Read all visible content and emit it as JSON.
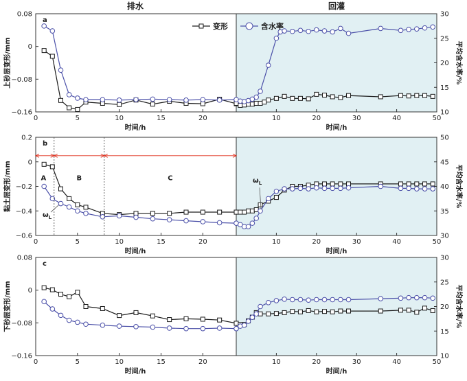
{
  "headers": {
    "left": "排水",
    "right": "回灌"
  },
  "legend": {
    "deform": "变形",
    "moisture": "含水率"
  },
  "colors": {
    "deform": "#1a1a1a",
    "moisture": "#4a4fa8",
    "shade": "#e1f0f3",
    "arrow": "#e0301e"
  },
  "chart_data": [
    {
      "type": "line",
      "panel_label": "a",
      "ylabel": "上砂层变形/mm",
      "y2label": "平均含水率/%",
      "xlabel_left": "时间/h",
      "xlabel_right": "时间/h",
      "ylim": [
        -0.16,
        0.08
      ],
      "yticks": [
        -0.16,
        -0.08,
        0,
        0.08
      ],
      "ytick_labels": [
        "−0.16",
        "−0.08",
        "0",
        "0.08"
      ],
      "y2lim": [
        10,
        30
      ],
      "y2ticks": [
        10,
        15,
        20,
        25,
        30
      ],
      "xticks_left": [
        0,
        5,
        10,
        15,
        20
      ],
      "xticks_right": [
        0,
        10,
        20,
        30,
        40,
        50
      ],
      "drain": {
        "deform": [
          [
            1,
            -0.01
          ],
          [
            2,
            -0.024
          ],
          [
            3,
            -0.132
          ],
          [
            4,
            -0.15
          ],
          [
            5,
            -0.154
          ],
          [
            6,
            -0.136
          ],
          [
            8,
            -0.139
          ],
          [
            10,
            -0.142
          ],
          [
            12,
            -0.131
          ],
          [
            14,
            -0.141
          ],
          [
            16,
            -0.134
          ],
          [
            18,
            -0.139
          ],
          [
            20,
            -0.14
          ],
          [
            22,
            -0.129
          ],
          [
            24,
            -0.14
          ]
        ],
        "moisture": [
          [
            1,
            27.5
          ],
          [
            2,
            26.5
          ],
          [
            3,
            18.5
          ],
          [
            4,
            13.5
          ],
          [
            5,
            12.8
          ],
          [
            6,
            12.5
          ],
          [
            8,
            12.5
          ],
          [
            10,
            12.4
          ],
          [
            12,
            12.5
          ],
          [
            14,
            12.6
          ],
          [
            16,
            12.5
          ],
          [
            18,
            12.4
          ],
          [
            20,
            12.5
          ],
          [
            22,
            12.4
          ],
          [
            24,
            12.5
          ]
        ]
      },
      "recharge": {
        "deform": [
          [
            0,
            -0.139
          ],
          [
            1,
            -0.144
          ],
          [
            2,
            -0.143
          ],
          [
            3,
            -0.141
          ],
          [
            4,
            -0.141
          ],
          [
            5,
            -0.139
          ],
          [
            6,
            -0.139
          ],
          [
            7,
            -0.136
          ],
          [
            8,
            -0.131
          ],
          [
            10,
            -0.127
          ],
          [
            12,
            -0.122
          ],
          [
            14,
            -0.127
          ],
          [
            16,
            -0.127
          ],
          [
            18,
            -0.128
          ],
          [
            20,
            -0.117
          ],
          [
            22,
            -0.119
          ],
          [
            24,
            -0.123
          ],
          [
            26,
            -0.125
          ],
          [
            28,
            -0.12
          ],
          [
            36,
            -0.123
          ],
          [
            41,
            -0.12
          ],
          [
            43,
            -0.121
          ],
          [
            45,
            -0.12
          ],
          [
            47,
            -0.12
          ],
          [
            49,
            -0.122
          ]
        ],
        "moisture": [
          [
            0,
            12.5
          ],
          [
            1,
            12.2
          ],
          [
            2,
            12.1
          ],
          [
            3,
            12.3
          ],
          [
            4,
            12.6
          ],
          [
            5,
            13.0
          ],
          [
            6,
            14.2
          ],
          [
            8,
            19.5
          ],
          [
            10,
            25.0
          ],
          [
            11,
            26.3
          ],
          [
            12,
            26.5
          ],
          [
            14,
            26.4
          ],
          [
            16,
            26.6
          ],
          [
            18,
            26.4
          ],
          [
            20,
            26.7
          ],
          [
            22,
            26.5
          ],
          [
            24,
            26.3
          ],
          [
            26,
            27.0
          ],
          [
            28,
            26.0
          ],
          [
            36,
            27.0
          ],
          [
            41,
            26.6
          ],
          [
            43,
            26.8
          ],
          [
            45,
            26.9
          ],
          [
            47,
            27.1
          ],
          [
            49,
            27.3
          ]
        ]
      }
    },
    {
      "type": "line",
      "panel_label": "b",
      "ylabel": "黏土层变形/mm",
      "y2label": "平均含水率/%",
      "xlabel_left": "时间/h",
      "xlabel_right": "时间/h",
      "ylim": [
        -0.6,
        0.2
      ],
      "yticks": [
        -0.6,
        -0.4,
        -0.2,
        0,
        0.2
      ],
      "ytick_labels": [
        "−0.6",
        "−0.4",
        "−0.2",
        "0",
        "0.2"
      ],
      "y2lim": [
        30,
        50
      ],
      "y2ticks": [
        30,
        35,
        40,
        45,
        50
      ],
      "xticks_left": [
        0,
        5,
        10,
        15,
        20
      ],
      "xticks_right": [
        0,
        10,
        20,
        30,
        40,
        50
      ],
      "stage_labels": [
        "A",
        "B",
        "C"
      ],
      "stage_bounds": [
        2.2,
        8.2
      ],
      "omega_label": "ω",
      "omega_sub": "L",
      "drain": {
        "deform": [
          [
            1,
            -0.02
          ],
          [
            2,
            -0.04
          ],
          [
            3,
            -0.22
          ],
          [
            4,
            -0.3
          ],
          [
            5,
            -0.35
          ],
          [
            6,
            -0.37
          ],
          [
            8,
            -0.42
          ],
          [
            10,
            -0.43
          ],
          [
            12,
            -0.42
          ],
          [
            14,
            -0.42
          ],
          [
            16,
            -0.42
          ],
          [
            18,
            -0.41
          ],
          [
            20,
            -0.41
          ],
          [
            22,
            -0.41
          ],
          [
            24,
            -0.41
          ]
        ],
        "moisture": [
          [
            1,
            40.0
          ],
          [
            2,
            37.5
          ],
          [
            3,
            36.5
          ],
          [
            4,
            35.8
          ],
          [
            5,
            35.0
          ],
          [
            6,
            34.5
          ],
          [
            8,
            33.8
          ],
          [
            10,
            34.0
          ],
          [
            12,
            33.7
          ],
          [
            14,
            33.4
          ],
          [
            16,
            33.2
          ],
          [
            18,
            33.0
          ],
          [
            20,
            32.8
          ],
          [
            22,
            32.6
          ],
          [
            24,
            32.5
          ]
        ]
      },
      "recharge": {
        "deform": [
          [
            0,
            -0.41
          ],
          [
            1,
            -0.41
          ],
          [
            2,
            -0.41
          ],
          [
            3,
            -0.4
          ],
          [
            4,
            -0.4
          ],
          [
            5,
            -0.39
          ],
          [
            6,
            -0.35
          ],
          [
            8,
            -0.32
          ],
          [
            10,
            -0.29
          ],
          [
            12,
            -0.23
          ],
          [
            14,
            -0.2
          ],
          [
            16,
            -0.2
          ],
          [
            18,
            -0.19
          ],
          [
            20,
            -0.18
          ],
          [
            22,
            -0.18
          ],
          [
            24,
            -0.18
          ],
          [
            26,
            -0.18
          ],
          [
            28,
            -0.18
          ],
          [
            36,
            -0.18
          ],
          [
            41,
            -0.18
          ],
          [
            43,
            -0.18
          ],
          [
            45,
            -0.18
          ],
          [
            47,
            -0.18
          ],
          [
            49,
            -0.18
          ]
        ],
        "moisture": [
          [
            0,
            32.5
          ],
          [
            1,
            32.2
          ],
          [
            2,
            31.8
          ],
          [
            3,
            31.8
          ],
          [
            4,
            32.5
          ],
          [
            5,
            33.5
          ],
          [
            6,
            35.0
          ],
          [
            8,
            37.5
          ],
          [
            10,
            39.0
          ],
          [
            12,
            39.5
          ],
          [
            14,
            39.5
          ],
          [
            16,
            39.6
          ],
          [
            18,
            39.5
          ],
          [
            20,
            39.7
          ],
          [
            22,
            39.6
          ],
          [
            24,
            39.6
          ],
          [
            26,
            39.6
          ],
          [
            28,
            39.7
          ],
          [
            36,
            40.0
          ],
          [
            41,
            39.6
          ],
          [
            43,
            39.6
          ],
          [
            45,
            39.5
          ],
          [
            47,
            39.5
          ],
          [
            49,
            39.5
          ]
        ]
      }
    },
    {
      "type": "line",
      "panel_label": "c",
      "ylabel": "下砂层变形/mm",
      "y2label": "平均含水率/%",
      "xlabel_left": "时间/h",
      "xlabel_right": "时间/h",
      "ylim": [
        -0.16,
        0.08
      ],
      "yticks": [
        -0.16,
        -0.08,
        0,
        0.08
      ],
      "ytick_labels": [
        "−0.16",
        "−0.08",
        "0",
        "0.08"
      ],
      "y2lim": [
        10,
        30
      ],
      "y2ticks": [
        10,
        15,
        20,
        25,
        30
      ],
      "xticks_left": [
        0,
        5,
        10,
        15,
        20
      ],
      "xticks_right": [
        0,
        10,
        20,
        30,
        40,
        50
      ],
      "drain": {
        "deform": [
          [
            1,
            0.006
          ],
          [
            2,
            0.001
          ],
          [
            3,
            -0.01
          ],
          [
            4,
            -0.016
          ],
          [
            5,
            -0.005
          ],
          [
            6,
            -0.04
          ],
          [
            8,
            -0.045
          ],
          [
            10,
            -0.062
          ],
          [
            12,
            -0.055
          ],
          [
            14,
            -0.063
          ],
          [
            16,
            -0.072
          ],
          [
            18,
            -0.07
          ],
          [
            20,
            -0.071
          ],
          [
            22,
            -0.073
          ],
          [
            24,
            -0.081
          ]
        ],
        "moisture": [
          [
            1,
            21.0
          ],
          [
            2,
            19.5
          ],
          [
            3,
            18.2
          ],
          [
            4,
            17.2
          ],
          [
            5,
            16.8
          ],
          [
            6,
            16.4
          ],
          [
            8,
            16.2
          ],
          [
            10,
            16.0
          ],
          [
            12,
            15.9
          ],
          [
            14,
            15.8
          ],
          [
            16,
            15.6
          ],
          [
            18,
            15.5
          ],
          [
            20,
            15.5
          ],
          [
            22,
            15.6
          ],
          [
            24,
            15.5
          ]
        ]
      },
      "recharge": {
        "deform": [
          [
            0,
            -0.081
          ],
          [
            1,
            -0.084
          ],
          [
            2,
            -0.084
          ],
          [
            3,
            -0.075
          ],
          [
            4,
            -0.066
          ],
          [
            5,
            -0.055
          ],
          [
            6,
            -0.058
          ],
          [
            8,
            -0.058
          ],
          [
            10,
            -0.057
          ],
          [
            12,
            -0.055
          ],
          [
            14,
            -0.052
          ],
          [
            16,
            -0.053
          ],
          [
            18,
            -0.05
          ],
          [
            20,
            -0.053
          ],
          [
            22,
            -0.052
          ],
          [
            24,
            -0.053
          ],
          [
            26,
            -0.051
          ],
          [
            28,
            -0.051
          ],
          [
            36,
            -0.051
          ],
          [
            41,
            -0.049
          ],
          [
            43,
            -0.049
          ],
          [
            45,
            -0.054
          ],
          [
            47,
            -0.044
          ],
          [
            49,
            -0.05
          ]
        ],
        "moisture": [
          [
            0,
            15.5
          ],
          [
            1,
            16.0
          ],
          [
            2,
            16.2
          ],
          [
            3,
            17.0
          ],
          [
            4,
            17.8
          ],
          [
            5,
            18.5
          ],
          [
            6,
            20.0
          ],
          [
            8,
            20.8
          ],
          [
            10,
            21.2
          ],
          [
            12,
            21.5
          ],
          [
            14,
            21.4
          ],
          [
            16,
            21.4
          ],
          [
            18,
            21.3
          ],
          [
            20,
            21.4
          ],
          [
            22,
            21.4
          ],
          [
            24,
            21.4
          ],
          [
            26,
            21.4
          ],
          [
            28,
            21.4
          ],
          [
            36,
            21.6
          ],
          [
            41,
            21.7
          ],
          [
            43,
            21.8
          ],
          [
            45,
            21.8
          ],
          [
            47,
            21.8
          ],
          [
            49,
            21.7
          ]
        ]
      }
    }
  ]
}
